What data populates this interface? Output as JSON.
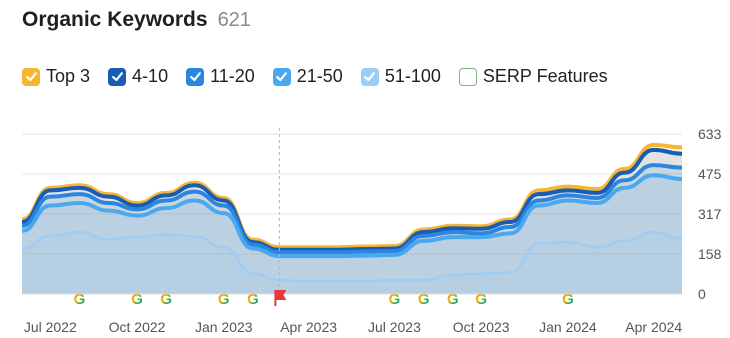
{
  "header": {
    "title": "Organic Keywords",
    "count": "621"
  },
  "legend": [
    {
      "label": "Top 3",
      "color": "#f5b731",
      "checked": true
    },
    {
      "label": "4-10",
      "color": "#1a5bb5",
      "checked": true
    },
    {
      "label": "11-20",
      "color": "#2a86e0",
      "checked": true
    },
    {
      "label": "21-50",
      "color": "#4aa8ee",
      "checked": true
    },
    {
      "label": "51-100",
      "color": "#9dcdf5",
      "checked": true
    },
    {
      "label": "SERP Features",
      "color": "#7cb87c",
      "checked": false
    }
  ],
  "chart_data": {
    "type": "area",
    "x": [
      "2022-06",
      "2022-07",
      "2022-08",
      "2022-09",
      "2022-10",
      "2022-11",
      "2022-12",
      "2023-01",
      "2023-02",
      "2023-03",
      "2023-04",
      "2023-05",
      "2023-06",
      "2023-07",
      "2023-08",
      "2023-09",
      "2023-10",
      "2023-11",
      "2023-12",
      "2024-01",
      "2024-02",
      "2024-03",
      "2024-04",
      "2024-05"
    ],
    "x_tick_labels": [
      "Jul 2022",
      "Oct 2022",
      "Jan 2023",
      "Apr 2023",
      "Jul 2023",
      "Oct 2023",
      "Jan 2024",
      "Apr 2024"
    ],
    "x_tick_positions": [
      "2022-07",
      "2022-10",
      "2023-01",
      "2023-04",
      "2023-07",
      "2023-10",
      "2024-01",
      "2024-04"
    ],
    "y_ticks": [
      0,
      158,
      317,
      475,
      633
    ],
    "ylim": [
      0,
      633
    ],
    "stacked": true,
    "series": [
      {
        "name": "51-100",
        "color": "#9dcdf5",
        "values": [
          180,
          230,
          245,
          215,
          225,
          235,
          228,
          185,
          80,
          55,
          50,
          50,
          52,
          55,
          55,
          75,
          80,
          85,
          200,
          205,
          185,
          210,
          245,
          220
        ]
      },
      {
        "name": "21-50",
        "color": "#4aa8ee",
        "values": [
          250,
          350,
          360,
          330,
          310,
          340,
          370,
          320,
          180,
          150,
          150,
          150,
          152,
          155,
          210,
          225,
          225,
          240,
          350,
          370,
          360,
          420,
          470,
          455
        ]
      },
      {
        "name": "11-20",
        "color": "#2a86e0",
        "values": [
          270,
          385,
          395,
          360,
          335,
          370,
          405,
          350,
          195,
          165,
          165,
          165,
          168,
          170,
          230,
          245,
          240,
          265,
          370,
          390,
          380,
          450,
          510,
          500
        ]
      },
      {
        "name": "4-10",
        "color": "#1a5bb5",
        "values": [
          285,
          410,
          420,
          385,
          350,
          390,
          430,
          370,
          205,
          175,
          175,
          175,
          178,
          180,
          245,
          260,
          258,
          285,
          395,
          410,
          400,
          480,
          570,
          555
        ]
      },
      {
        "name": "Top 3",
        "color": "#f5b731",
        "values": [
          295,
          420,
          430,
          395,
          360,
          400,
          440,
          380,
          215,
          185,
          185,
          185,
          188,
          190,
          255,
          270,
          268,
          295,
          410,
          425,
          415,
          495,
          590,
          580
        ]
      }
    ],
    "annotations": [
      {
        "x": "2022-08",
        "type": "google"
      },
      {
        "x": "2022-10",
        "type": "google"
      },
      {
        "x": "2022-11",
        "type": "google"
      },
      {
        "x": "2023-01",
        "type": "google"
      },
      {
        "x": "2023-02",
        "type": "google"
      },
      {
        "x": "2023-03",
        "type": "flag"
      },
      {
        "x": "2023-07",
        "type": "google"
      },
      {
        "x": "2023-08",
        "type": "google"
      },
      {
        "x": "2023-09",
        "type": "google"
      },
      {
        "x": "2023-10",
        "type": "google"
      },
      {
        "x": "2024-01",
        "type": "google"
      }
    ],
    "marker_line_x": "2023-03",
    "grid": true
  }
}
